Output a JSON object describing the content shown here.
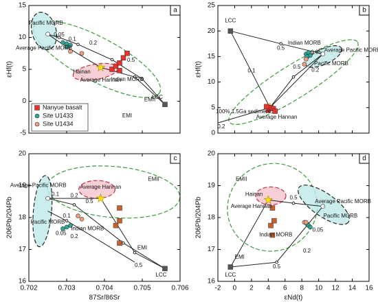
{
  "chart_data": [
    {
      "type": "scatter",
      "panel": "a",
      "ylabel": "εHf(t)",
      "xlim": [
        0.702,
        0.706
      ],
      "ylim": [
        -5,
        15
      ],
      "xticks": [
        0.702,
        0.703,
        0.704,
        0.705,
        0.706
      ],
      "yticks": [
        -5,
        0,
        5,
        10,
        15
      ],
      "legend": "lower left",
      "series": [
        {
          "name": "Nanyue basalt",
          "marker": "square",
          "color": "#e8322b",
          "x": [
            0.7042,
            0.7043,
            0.7044,
            0.7045,
            0.7046,
            0.7044
          ],
          "y": [
            5,
            5.5,
            6,
            6.8,
            7.5,
            4.8
          ]
        },
        {
          "name": "Site U1433",
          "marker": "circle",
          "color": "#2aa89a",
          "x": [
            0.703,
            0.7031,
            0.7029,
            0.703
          ],
          "y": [
            9,
            8.8,
            9.2,
            8.5
          ]
        },
        {
          "name": "Site U1434",
          "marker": "circle",
          "color": "#f0a080",
          "x": [
            0.7031,
            0.7034
          ],
          "y": [
            7.8,
            7.5
          ]
        }
      ],
      "endmembers": [
        {
          "marker": "square",
          "color": "#555555",
          "x": 0.7056,
          "y": -0.5
        },
        {
          "marker": "star",
          "color": "#ffe000",
          "x": 0.7039,
          "y": 5.3
        },
        {
          "marker": "circle",
          "color": "#ffffff",
          "x": 0.7025,
          "y": 10.5
        }
      ],
      "curves": [
        {
          "x": [
            0.7025,
            0.7028,
            0.7033,
            0.7042,
            0.705,
            0.7056
          ],
          "y": [
            10.5,
            10,
            8.9,
            6.5,
            3.5,
            -0.5
          ]
        },
        {
          "x": [
            0.7039,
            0.7048,
            0.7056
          ],
          "y": [
            5.3,
            3.8,
            -0.5
          ]
        },
        {
          "x": [
            0.7025,
            0.703,
            0.7039
          ],
          "y": [
            10.5,
            8.5,
            5.3
          ]
        }
      ],
      "annotations": [
        {
          "text": "0.05",
          "x": 0.7028,
          "y": 10.4
        },
        {
          "text": "0.1",
          "x": 0.70315,
          "y": 9.7
        },
        {
          "text": "0.2",
          "x": 0.7037,
          "y": 9.1
        },
        {
          "text": "0.5",
          "x": 0.7047,
          "y": 6.4
        },
        {
          "text": "Pacific MORB",
          "x": 0.70245,
          "y": 12.2
        },
        {
          "text": "Average Pacific MORB",
          "x": 0.7024,
          "y": 8.3
        },
        {
          "text": "Hainan",
          "x": 0.7034,
          "y": 4.6
        },
        {
          "text": "Average Hannan",
          "x": 0.7039,
          "y": 3.3
        },
        {
          "text": "Indian MORB",
          "x": 0.7046,
          "y": 3.4
        },
        {
          "text": "EMII",
          "x": 0.7052,
          "y": 0.2
        },
        {
          "text": "EMI",
          "x": 0.7046,
          "y": -2.3
        },
        {
          "text": "LCC",
          "x": 0.7054,
          "y": 0.6
        }
      ]
    },
    {
      "type": "scatter",
      "panel": "b",
      "ylabel": "εHf(t)",
      "xlim": [
        -2,
        16
      ],
      "ylim": [
        0,
        25
      ],
      "xticks": [
        -2,
        0,
        2,
        4,
        6,
        8,
        10,
        12,
        14,
        16
      ],
      "yticks": [
        0,
        5,
        10,
        15,
        20,
        25
      ],
      "series": [
        {
          "marker": "square",
          "color": "#e8322b",
          "x": [
            4.0,
            4.3,
            4.6,
            4.8,
            3.8
          ],
          "y": [
            4.5,
            5,
            4.8,
            4.3,
            5.2
          ]
        },
        {
          "marker": "circle",
          "color": "#2aa89a",
          "x": [
            8.5,
            8.8,
            9,
            8.6
          ],
          "y": [
            15.5,
            15.8,
            15.2,
            15
          ]
        },
        {
          "marker": "circle",
          "color": "#f0a080",
          "x": [
            8.5,
            8.3
          ],
          "y": [
            14.5,
            13.5
          ]
        }
      ],
      "endmembers": [
        {
          "marker": "square",
          "color": "#555555",
          "x": -0.5,
          "y": 20
        },
        {
          "marker": "star",
          "color": "#ffe000",
          "x": 4.2,
          "y": 5
        },
        {
          "marker": "circle",
          "color": "#ffffff",
          "x": 10.5,
          "y": 15.5
        }
      ],
      "curves": [
        {
          "x": [
            -0.5,
            4.2
          ],
          "y": [
            20,
            5
          ]
        },
        {
          "x": [
            -0.5,
            5.5,
            10.5
          ],
          "y": [
            20,
            17.5,
            15.5
          ]
        },
        {
          "x": [
            4.2,
            7,
            10.5
          ],
          "y": [
            5,
            11,
            15.5
          ]
        },
        {
          "x": [
            -2,
            4.2,
            10.5
          ],
          "y": [
            2,
            5,
            15.5
          ]
        }
      ],
      "annotations": [
        {
          "text": "0.5",
          "x": 5.5,
          "y": 16.6
        },
        {
          "text": "0.05",
          "x": 9.7,
          "y": 15.8
        },
        {
          "text": "0.1",
          "x": 2,
          "y": 12.2
        },
        {
          "text": "0.2",
          "x": 9.6,
          "y": 12.3
        },
        {
          "text": "0.5",
          "x": 7.4,
          "y": 12.9
        },
        {
          "text": "0.2",
          "x": -1.6,
          "y": 1.2
        },
        {
          "text": "100% 1.5Ga sediment",
          "x": 1,
          "y": 4.2
        },
        {
          "text": "Indian MORB",
          "x": 8.3,
          "y": 17.6
        },
        {
          "text": "Pacific MORB",
          "x": 11.5,
          "y": 13.6
        },
        {
          "text": "Average Pacific MORB",
          "x": 14,
          "y": 16.2
        },
        {
          "text": "Average Hannan",
          "x": 5,
          "y": 3.1
        },
        {
          "text": "LCC",
          "x": -0.5,
          "y": 22
        }
      ]
    },
    {
      "type": "scatter",
      "panel": "c",
      "ylabel": "206Pb/204Pb",
      "xlabel": "87Sr/86Sr",
      "xlim": [
        0.702,
        0.706
      ],
      "ylim": [
        16,
        20
      ],
      "xticks": [
        0.702,
        0.703,
        0.704,
        0.705,
        0.706
      ],
      "yticks": [
        16,
        17,
        18,
        19,
        20
      ],
      "series": [
        {
          "marker": "square",
          "color": "#c8602a",
          "x": [
            0.7044,
            0.7044,
            0.7043,
            0.7044
          ],
          "y": [
            18.3,
            17.9,
            17.75,
            17.2
          ]
        },
        {
          "marker": "circle",
          "color": "#2aa89a",
          "x": [
            0.703,
            0.7029,
            0.7031
          ],
          "y": [
            17.7,
            17.65,
            17.75
          ]
        },
        {
          "marker": "circle",
          "color": "#f0a080",
          "x": [
            0.7033,
            0.7034
          ],
          "y": [
            18.05,
            17.95
          ]
        }
      ],
      "endmembers": [
        {
          "marker": "square",
          "color": "#555555",
          "x": 0.7056,
          "y": 16.4
        },
        {
          "marker": "star",
          "color": "#ffe000",
          "x": 0.7039,
          "y": 18.6
        },
        {
          "marker": "circle",
          "color": "#ffffff",
          "x": 0.7025,
          "y": 18.6
        }
      ],
      "curves": [
        {
          "x": [
            0.7025,
            0.7032,
            0.7045,
            0.7056
          ],
          "y": [
            18.6,
            18.4,
            17.2,
            16.4
          ]
        },
        {
          "x": [
            0.7025,
            0.7039
          ],
          "y": [
            18.6,
            18.6
          ]
        },
        {
          "x": [
            0.7039,
            0.7048,
            0.7056
          ],
          "y": [
            18.6,
            16.9,
            16.4
          ]
        },
        {
          "x": [
            0.7025,
            0.703,
            0.7048
          ],
          "y": [
            18.2,
            17.9,
            16.6
          ]
        }
      ],
      "annotations": [
        {
          "text": "0.1",
          "x": 0.7027,
          "y": 18.72
        },
        {
          "text": "0.2",
          "x": 0.7032,
          "y": 18.68
        },
        {
          "text": "0.5",
          "x": 0.7036,
          "y": 18.5
        },
        {
          "text": "0.1",
          "x": 0.703,
          "y": 18.05
        },
        {
          "text": "0.05",
          "x": 0.70285,
          "y": 17.5
        },
        {
          "text": "0.2",
          "x": 0.7032,
          "y": 17.4
        },
        {
          "text": "0.5",
          "x": 0.7049,
          "y": 16.5
        },
        {
          "text": "EMII",
          "x": 0.7053,
          "y": 19.2
        },
        {
          "text": "EMI",
          "x": 0.705,
          "y": 17.05
        },
        {
          "text": "Indian MORB",
          "x": 0.70355,
          "y": 17.65
        },
        {
          "text": "Pacific MORB",
          "x": 0.7025,
          "y": 17.85
        },
        {
          "text": "Average Pacific MORB",
          "x": 0.70225,
          "y": 19.0
        },
        {
          "text": "Average Hannan",
          "x": 0.7039,
          "y": 18.95
        },
        {
          "text": "LCC",
          "x": 0.7055,
          "y": 16.2
        }
      ]
    },
    {
      "type": "scatter",
      "panel": "d",
      "ylabel": "206Pb/204Pb",
      "xlabel": "εNd(t)",
      "xlim": [
        -2,
        16
      ],
      "ylim": [
        16,
        20
      ],
      "xticks": [
        -2,
        0,
        2,
        4,
        6,
        8,
        10,
        12,
        14,
        16
      ],
      "yticks": [
        16,
        17,
        18,
        19,
        20
      ],
      "series": [
        {
          "marker": "square",
          "color": "#c8602a",
          "x": [
            4.5,
            4.7,
            4.3,
            4.5
          ],
          "y": [
            18.3,
            17.9,
            17.75,
            17.45
          ]
        },
        {
          "marker": "circle",
          "color": "#2aa89a",
          "x": [
            8.6,
            8.8,
            9
          ],
          "y": [
            17.8,
            17.75,
            17.7
          ]
        },
        {
          "marker": "circle",
          "color": "#f0a080",
          "x": [
            8.3,
            8.5
          ],
          "y": [
            17.85,
            17.85
          ]
        }
      ],
      "endmembers": [
        {
          "marker": "square",
          "color": "#555555",
          "x": -0.5,
          "y": 16.45
        },
        {
          "marker": "star",
          "color": "#ffe000",
          "x": 4,
          "y": 18.55
        },
        {
          "marker": "circle",
          "color": "#ffffff",
          "x": 10.5,
          "y": 18.35
        }
      ],
      "curves": [
        {
          "x": [
            -0.5,
            4
          ],
          "y": [
            16.45,
            18.55
          ]
        },
        {
          "x": [
            -0.5,
            5,
            10.5
          ],
          "y": [
            16.45,
            16.6,
            18.35
          ]
        },
        {
          "x": [
            4,
            7,
            10.5
          ],
          "y": [
            18.55,
            18.45,
            18.35
          ]
        }
      ],
      "annotations": [
        {
          "text": "0.5",
          "x": 5,
          "y": 16.45
        },
        {
          "text": "0.2",
          "x": 8.6,
          "y": 16.95
        },
        {
          "text": "0.5",
          "x": 7,
          "y": 18.62
        },
        {
          "text": "0.05",
          "x": 9.9,
          "y": 17.6
        },
        {
          "text": "EMII",
          "x": 0.8,
          "y": 19.2
        },
        {
          "text": "EMI",
          "x": 0.6,
          "y": 16.75
        },
        {
          "text": "Hainan",
          "x": 2.3,
          "y": 18.72
        },
        {
          "text": "Average Hannan",
          "x": 2,
          "y": 18.35
        },
        {
          "text": "Indian MORB",
          "x": 4.9,
          "y": 17.45
        },
        {
          "text": "Pacific MORB",
          "x": 12.6,
          "y": 18.05
        },
        {
          "text": "Average Pacific MORB",
          "x": 12.9,
          "y": 18.5
        },
        {
          "text": "LCC",
          "x": -0.5,
          "y": 16.2
        }
      ]
    }
  ]
}
